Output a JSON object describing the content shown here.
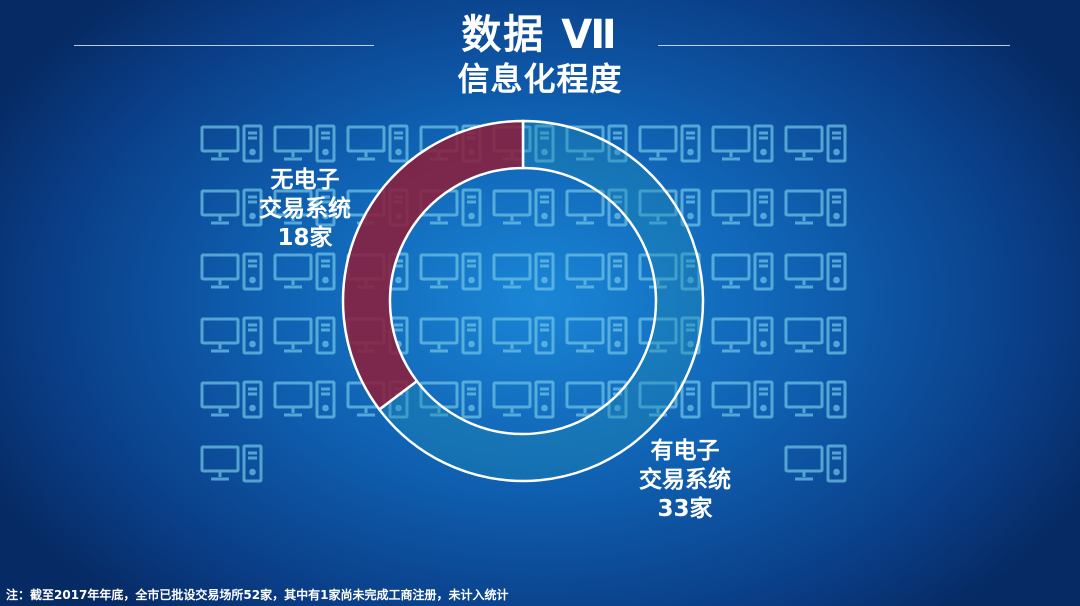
{
  "title": "数据 Ⅶ",
  "subtitle": "信息化程度",
  "chart_data": {
    "type": "pie",
    "style": "donut",
    "total": 51,
    "slices": [
      {
        "label_lines": [
          "无电子",
          "交易系统",
          "18家"
        ],
        "value": 18,
        "color": "#8a1f3c"
      },
      {
        "label_lines": [
          "有电子",
          "交易系统",
          "33家"
        ],
        "value": 33,
        "color": "#1f8ab0"
      }
    ]
  },
  "background_icon": "desktop-computer-icon",
  "footnote": "注：截至2017年年底，全市已批设交易场所52家，其中有1家尚未完成工商注册，未计入统计"
}
